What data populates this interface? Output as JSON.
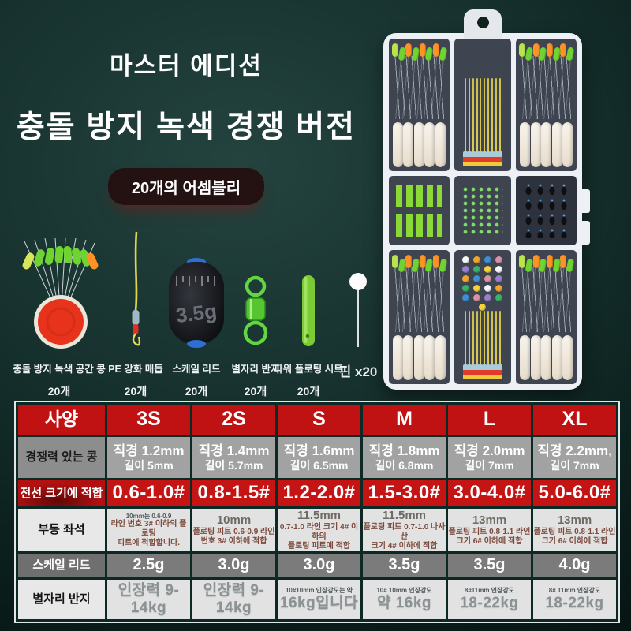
{
  "hero": {
    "title1": "마스터 에디션",
    "title2": "충돌 방지 녹색 경쟁 버전",
    "badge": "20개의 어셈블리"
  },
  "items": [
    {
      "name": "충돌 방지 녹색 공간 콩",
      "qty": "20개",
      "icon": "bean-fan-icon"
    },
    {
      "name": "PE 강화 매듭",
      "qty": "20개",
      "icon": "pe-knot-icon"
    },
    {
      "name": "스케일 리드",
      "qty": "20개",
      "icon": "lead-barrel-icon",
      "weight": "3.5g"
    },
    {
      "name": "별자리 반지",
      "qty": "20개",
      "icon": "swivel-icon"
    },
    {
      "name": "파워 플로팅 시트",
      "qty": "20개",
      "icon": "float-seat-icon"
    },
    {
      "name": "핀 x20",
      "qty": "",
      "icon": "pin-icon"
    }
  ],
  "box": {
    "compartments": [
      "stopper-assemblies",
      "pe-lines",
      "stopper-assemblies",
      "float-seats",
      "swivels",
      "lead-weights",
      "stopper-assemblies",
      "pins-and-lines",
      "stopper-assemblies"
    ]
  },
  "table": {
    "header": [
      "사양",
      "3S",
      "2S",
      "S",
      "M",
      "L",
      "XL"
    ],
    "rows": [
      {
        "label": "경쟁력 있는 콩",
        "style": "gray",
        "cells": [
          [
            {
              "text": "직경 1.2mm",
              "size": "big"
            },
            {
              "text": "길이 5mm",
              "size": "mid"
            }
          ],
          [
            {
              "text": "직경 1.4mm",
              "size": "big"
            },
            {
              "text": "길이 5.7mm",
              "size": "mid"
            }
          ],
          [
            {
              "text": "직경 1.6mm",
              "size": "big"
            },
            {
              "text": "길이 6.5mm",
              "size": "mid"
            }
          ],
          [
            {
              "text": "직경 1.8mm",
              "size": "big"
            },
            {
              "text": "길이 6.8mm",
              "size": "mid"
            }
          ],
          [
            {
              "text": "직경 2.0mm",
              "size": "big"
            },
            {
              "text": "길이 7mm",
              "size": "mid"
            }
          ],
          [
            {
              "text": "직경 2.2mm,",
              "size": "big"
            },
            {
              "text": "길이 7mm",
              "size": "mid"
            }
          ]
        ]
      },
      {
        "label": "전선 크기에 적합",
        "style": "red",
        "cells": [
          [
            {
              "text": "0.6-1.0#",
              "size": "xl"
            }
          ],
          [
            {
              "text": "0.8-1.5#",
              "size": "xl"
            }
          ],
          [
            {
              "text": "1.2-2.0#",
              "size": "xl"
            }
          ],
          [
            {
              "text": "1.5-3.0#",
              "size": "xl"
            }
          ],
          [
            {
              "text": "3.0-4.0#",
              "size": "xl"
            }
          ],
          [
            {
              "text": "5.0-6.0#",
              "size": "xl"
            }
          ]
        ]
      },
      {
        "label": "부동 좌석",
        "style": "light",
        "cells": [
          [
            {
              "text": "10mm는 0.6-0.9",
              "size": "tiny"
            },
            {
              "text": "라인 번호 3# 이하의 플로팅",
              "size": "small"
            },
            {
              "text": "피트에 적합합니다.",
              "size": "small"
            }
          ],
          [
            {
              "text": "10mm",
              "size": "mid"
            },
            {
              "text": "플로팅 피트 0.6-0.9 라인",
              "size": "small"
            },
            {
              "text": "번호 3# 이하에 적합",
              "size": "small"
            }
          ],
          [
            {
              "text": "11.5mm",
              "size": "mid"
            },
            {
              "text": "0.7-1.0 라인 크기 4# 이하의",
              "size": "small"
            },
            {
              "text": "플로팅 피트에 적합",
              "size": "small"
            }
          ],
          [
            {
              "text": "11.5mm",
              "size": "mid"
            },
            {
              "text": "플로팅 피트 0.7-1.0 나사산",
              "size": "small"
            },
            {
              "text": "크기 4# 이하에 적합",
              "size": "small"
            }
          ],
          [
            {
              "text": "13mm",
              "size": "mid"
            },
            {
              "text": "플로팅 피트 0.8-1.1 라인",
              "size": "small"
            },
            {
              "text": "크기 6# 이하에 적합",
              "size": "small"
            }
          ],
          [
            {
              "text": "13mm",
              "size": "mid"
            },
            {
              "text": "플로팅 피트 0.8-1.1 라인",
              "size": "small"
            },
            {
              "text": "크기 6# 이하에 적합",
              "size": "small"
            }
          ]
        ]
      },
      {
        "label": "스케일 리드",
        "style": "dark",
        "cells": [
          [
            {
              "text": "2.5g",
              "size": "lg"
            }
          ],
          [
            {
              "text": "3.0g",
              "size": "lg"
            }
          ],
          [
            {
              "text": "3.0g",
              "size": "lg"
            }
          ],
          [
            {
              "text": "3.5g",
              "size": "lg"
            }
          ],
          [
            {
              "text": "3.5g",
              "size": "lg"
            }
          ],
          [
            {
              "text": "4.0g",
              "size": "lg"
            }
          ]
        ]
      },
      {
        "label": "별자리 반지",
        "style": "light",
        "cells": [
          [
            {
              "text": "인장력 9-14kg",
              "size": "lggray"
            }
          ],
          [
            {
              "text": "인장력 9-14kg",
              "size": "lggray"
            }
          ],
          [
            {
              "text": "10#10mm 인장강도는 약",
              "size": "tiny"
            },
            {
              "text": "16kg입니다",
              "size": "lggray"
            }
          ],
          [
            {
              "text": "10# 10mm 인장강도",
              "size": "tiny"
            },
            {
              "text": "약 16kg",
              "size": "lggray"
            }
          ],
          [
            {
              "text": "8#11mm 인장강도",
              "size": "tiny"
            },
            {
              "text": "18-22kg",
              "size": "lggray"
            }
          ],
          [
            {
              "text": "8# 11mm 인장강도",
              "size": "tiny"
            },
            {
              "text": "18-22kg",
              "size": "lggray"
            }
          ]
        ]
      }
    ]
  },
  "colors": {
    "accent_red": "#c01212",
    "background_teal": "#17322f",
    "stopper_green": "#6fd331",
    "stopper_orange": "#ff9226",
    "pe_line_yellow": "#d3c44e"
  }
}
